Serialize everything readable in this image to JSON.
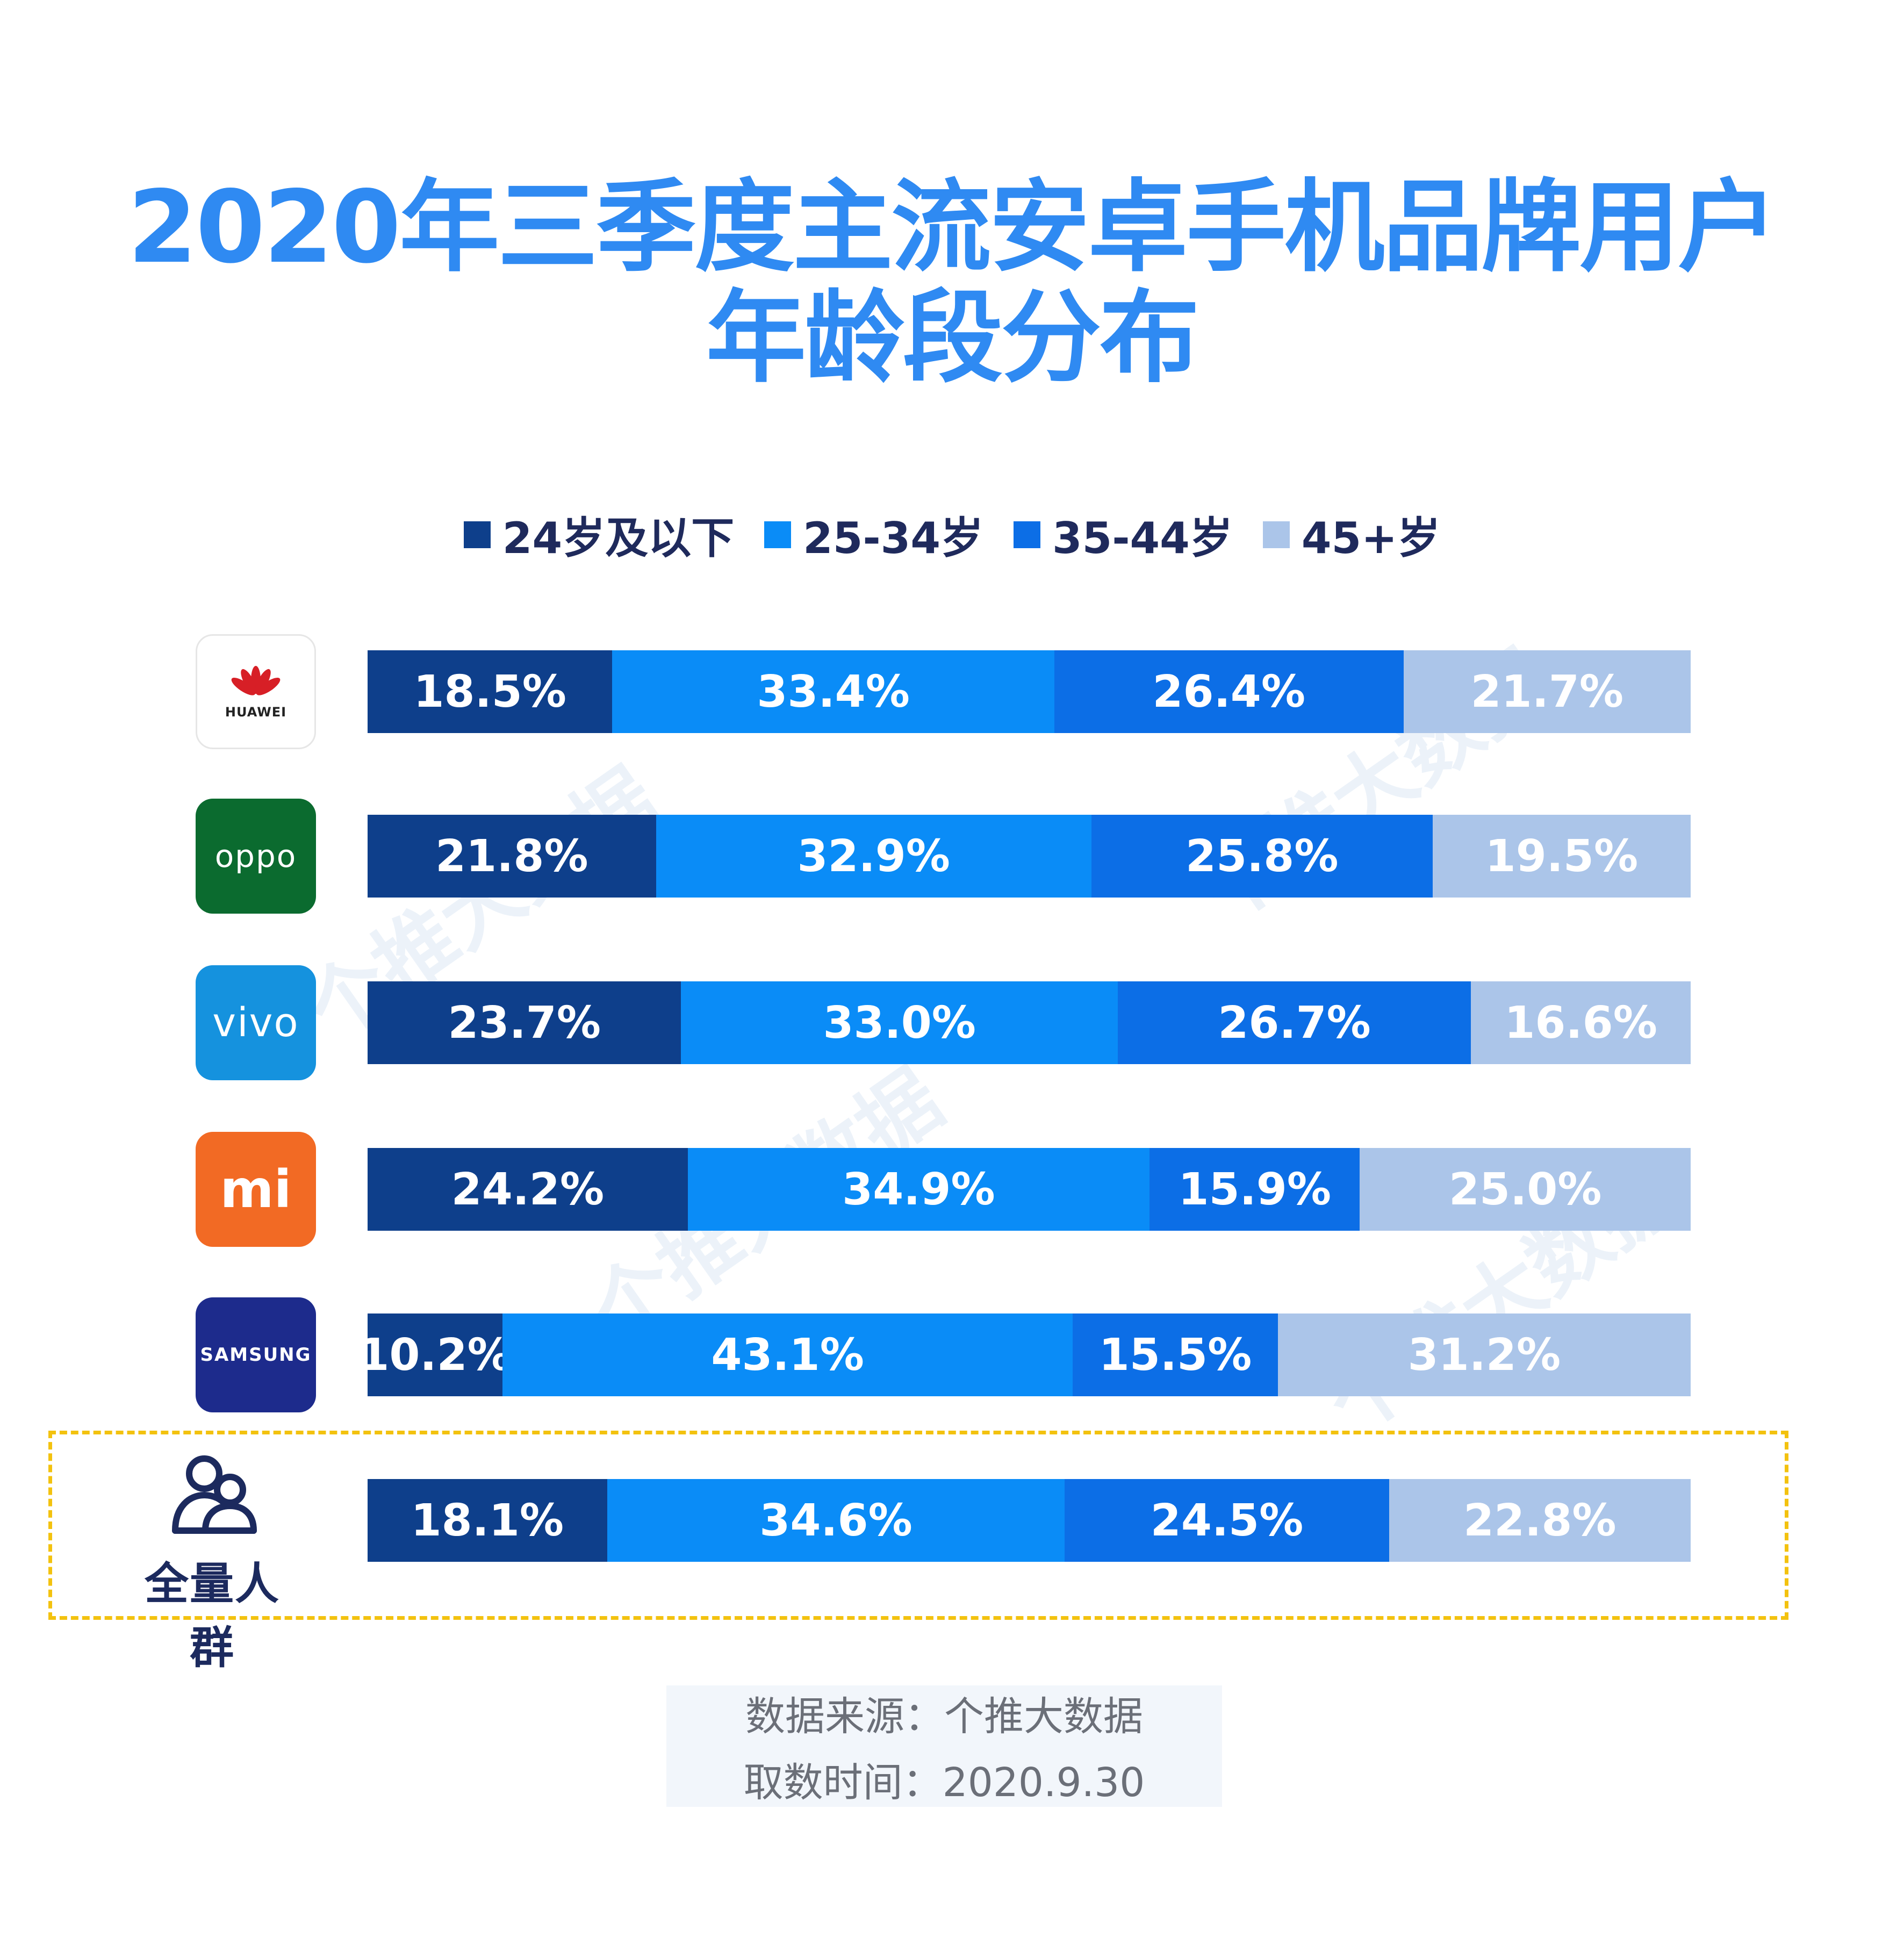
{
  "title": {
    "line1": "2020年三季度主流安卓手机品牌用户",
    "line2": "年龄段分布"
  },
  "colors": {
    "title": "#2f8af2",
    "age_24_below": "#0e3f8b",
    "age_25_34": "#0a8cf7",
    "age_35_44": "#0c6ee6",
    "age_45_plus": "#abc5e9",
    "highlight_border": "#f3c20f"
  },
  "legend": [
    {
      "label": "24岁及以下",
      "color": "#0e3f8b"
    },
    {
      "label": "25-34岁",
      "color": "#0a8cf7"
    },
    {
      "label": "35-44岁",
      "color": "#0c6ee6"
    },
    {
      "label": "45+岁",
      "color": "#abc5e9"
    }
  ],
  "brands": [
    {
      "name": "HUAWEI",
      "logo_text": "HUAWEI",
      "logo_color": "#ffffff",
      "icon": "huawei-logo-icon"
    },
    {
      "name": "OPPO",
      "logo_text": "oppo",
      "logo_color": "#0b6b2f",
      "icon": "oppo-logo-icon"
    },
    {
      "name": "vivo",
      "logo_text": "vivo",
      "logo_color": "#1592de",
      "icon": "vivo-logo-icon"
    },
    {
      "name": "MI",
      "logo_text": "mi",
      "logo_color": "#f26a24",
      "icon": "xiaomi-logo-icon"
    },
    {
      "name": "SAMSUNG",
      "logo_text": "SAMSUNG",
      "logo_color": "#1d2b8c",
      "icon": "samsung-logo-icon"
    },
    {
      "name": "全量人群",
      "logo_text": "全量人群",
      "logo_color": "#ffffff",
      "icon": "people-icon"
    }
  ],
  "chart_data": {
    "type": "bar",
    "orientation": "horizontal-stacked-100",
    "categories": [
      "HUAWEI",
      "OPPO",
      "vivo",
      "MI",
      "SAMSUNG",
      "全量人群"
    ],
    "series": [
      {
        "name": "24岁及以下",
        "values": [
          18.5,
          21.8,
          23.7,
          24.2,
          10.2,
          18.1
        ],
        "labels": [
          "18.5%",
          "21.8%",
          "23.7%",
          "24.2%",
          "10.2%",
          "18.1%"
        ]
      },
      {
        "name": "25-34岁",
        "values": [
          33.4,
          32.9,
          33.0,
          34.9,
          43.1,
          34.6
        ],
        "labels": [
          "33.4%",
          "32.9%",
          "33.0%",
          "34.9%",
          "43.1%",
          "34.6%"
        ]
      },
      {
        "name": "35-44岁",
        "values": [
          26.4,
          25.8,
          26.7,
          15.9,
          15.5,
          24.5
        ],
        "labels": [
          "26.4%",
          "25.8%",
          "26.7%",
          "15.9%",
          "15.5%",
          "24.5%"
        ]
      },
      {
        "name": "45+岁",
        "values": [
          21.7,
          19.5,
          16.6,
          25.0,
          31.2,
          22.8
        ],
        "labels": [
          "21.7%",
          "19.5%",
          "16.6%",
          "25.0%",
          "31.2%",
          "22.8%"
        ]
      }
    ],
    "legend_position": "top",
    "grid": false
  },
  "source": {
    "line1": "数据来源：个推大数据",
    "line2": "取数时间：2020.9.30"
  },
  "watermark": "个推大数据"
}
